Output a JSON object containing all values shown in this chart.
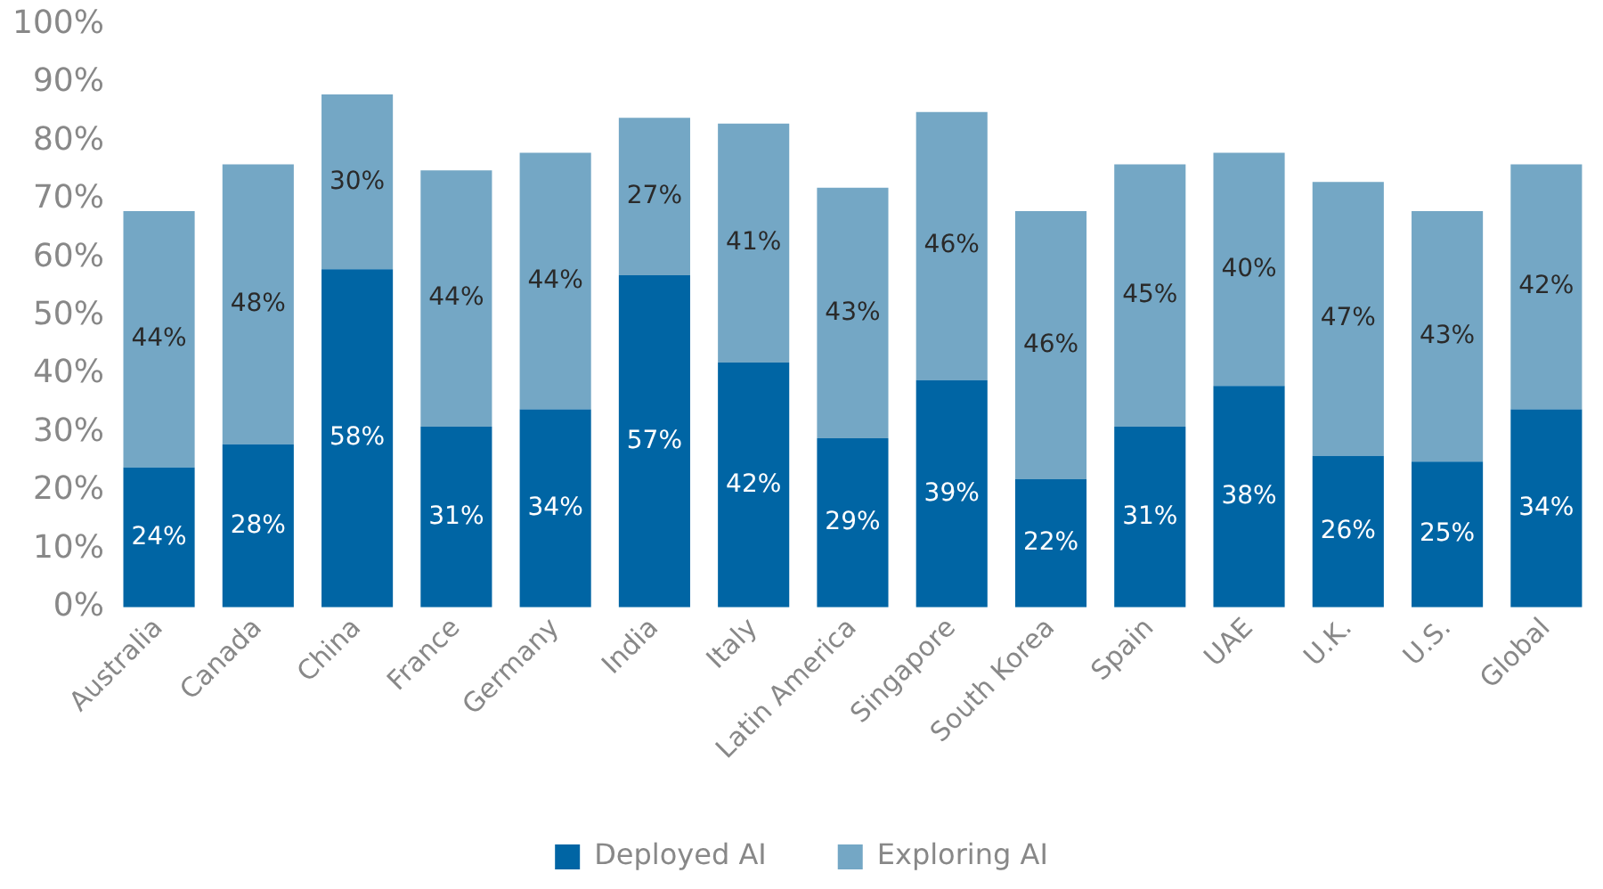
{
  "chart_data": {
    "type": "bar",
    "stacked": true,
    "categories": [
      "Australia",
      "Canada",
      "China",
      "France",
      "Germany",
      "India",
      "Italy",
      "Latin America",
      "Singapore",
      "South Korea",
      "Spain",
      "UAE",
      "U.K.",
      "U.S.",
      "Global"
    ],
    "series": [
      {
        "name": "Deployed AI",
        "color": "#0065a4",
        "values": [
          24,
          28,
          58,
          31,
          34,
          57,
          42,
          29,
          39,
          22,
          31,
          38,
          26,
          25,
          34
        ],
        "value_labels": [
          "24%",
          "28%",
          "58%",
          "31%",
          "34%",
          "57%",
          "42%",
          "29%",
          "39%",
          "22%",
          "31%",
          "38%",
          "26%",
          "25%",
          "34%"
        ]
      },
      {
        "name": "Exploring AI",
        "color": "#74a7c5",
        "values": [
          44,
          48,
          30,
          44,
          44,
          27,
          41,
          43,
          46,
          46,
          45,
          40,
          47,
          43,
          42
        ],
        "value_labels": [
          "44%",
          "48%",
          "30%",
          "44%",
          "44%",
          "27%",
          "41%",
          "43%",
          "46%",
          "46%",
          "45%",
          "40%",
          "47%",
          "43%",
          "42%"
        ]
      }
    ],
    "ylim": [
      0,
      100
    ],
    "yticks": [
      {
        "value": 0,
        "label": "0%"
      },
      {
        "value": 10,
        "label": "10%"
      },
      {
        "value": 20,
        "label": "20%"
      },
      {
        "value": 30,
        "label": "30%"
      },
      {
        "value": 40,
        "label": "40%"
      },
      {
        "value": 50,
        "label": "50%"
      },
      {
        "value": 60,
        "label": "60%"
      },
      {
        "value": 70,
        "label": "70%"
      },
      {
        "value": 80,
        "label": "80%"
      },
      {
        "value": 90,
        "label": "90%"
      },
      {
        "value": 100,
        "label": "100%"
      }
    ],
    "grid": false,
    "legend": "bottom"
  }
}
